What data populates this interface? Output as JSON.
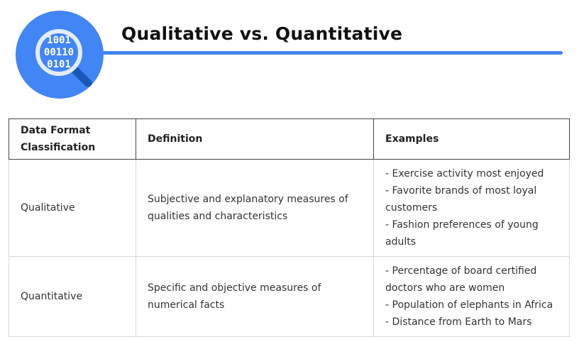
{
  "header": {
    "title": "Qualitative vs. Quantitative",
    "logo": {
      "icon": "binary-magnifier-icon",
      "lines": [
        "1001",
        "00110",
        "0101"
      ],
      "circle_color": "#4285f4",
      "ring_color": "#e3ecfb",
      "handle_color": "#1a57b8"
    },
    "accent_color": "#4285f4"
  },
  "table": {
    "headers": {
      "classification": "Data Format Classification",
      "definition": "Definition",
      "examples": "Examples"
    },
    "rows": [
      {
        "classification": "Qualitative",
        "definition": "Subjective and explanatory measures of qualities and characteristics",
        "examples": [
          "- Exercise activity most enjoyed",
          "- Favorite brands of most loyal customers",
          "- Fashion preferences of young adults"
        ]
      },
      {
        "classification": "Quantitative",
        "definition": "Specific and objective measures of numerical facts",
        "examples": [
          "- Percentage of board certified doctors who are women",
          "- Population of elephants in Africa",
          "- Distance from Earth to Mars"
        ]
      }
    ]
  }
}
